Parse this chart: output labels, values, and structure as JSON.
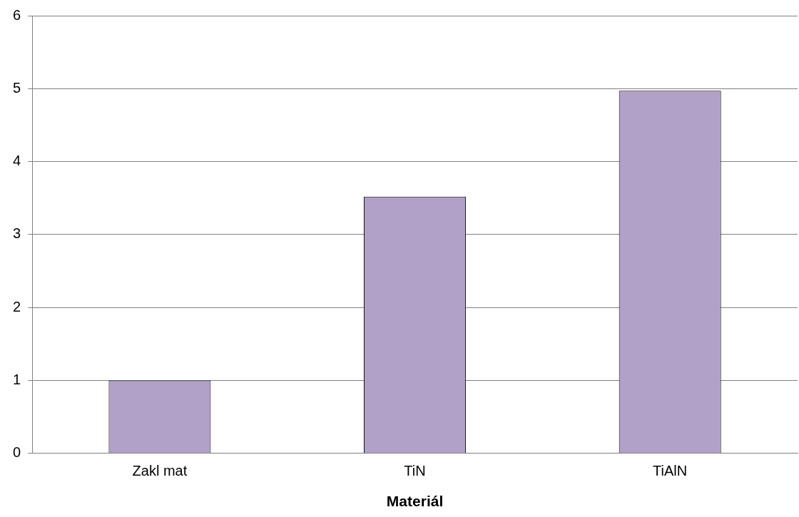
{
  "chart_data": {
    "type": "bar",
    "xlabel": "Materiál",
    "categories": [
      "Zakl mat",
      "TiN",
      "TiAlN"
    ],
    "values": [
      1.0,
      3.52,
      4.97
    ],
    "color": "#b1a0c7",
    "ylim": [
      0,
      6
    ],
    "yticks": [
      0,
      1,
      2,
      3,
      4,
      5,
      6
    ],
    "grid": "y",
    "legend": false
  }
}
